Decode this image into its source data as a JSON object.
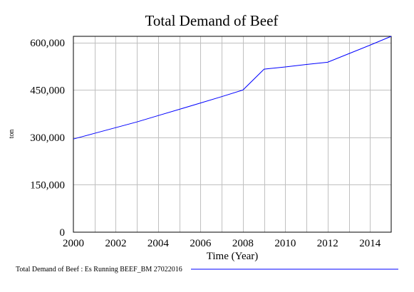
{
  "chart_data": {
    "type": "line",
    "title": "Total Demand of Beef",
    "xlabel": "Time (Year)",
    "ylabel": "ton",
    "xlim": [
      2000,
      2015
    ],
    "ylim": [
      0,
      620000
    ],
    "x_ticks": [
      2000,
      2002,
      2004,
      2006,
      2008,
      2010,
      2012,
      2014
    ],
    "x_tick_labels": [
      "2000",
      "2002",
      "2004",
      "2006",
      "2008",
      "2010",
      "2012",
      "2014"
    ],
    "y_ticks": [
      0,
      150000,
      300000,
      450000,
      600000
    ],
    "y_tick_labels": [
      "0",
      "150,000",
      "300,000",
      "450,000",
      "600,000"
    ],
    "grid": true,
    "legend_position": "bottom",
    "series": [
      {
        "name": "Total Demand of Beef : Es Running BEEF_BM 27022016",
        "color": "#0000ff",
        "x": [
          2000,
          2001,
          2002,
          2003,
          2004,
          2005,
          2006,
          2007,
          2008,
          2009,
          2010,
          2011,
          2012,
          2013,
          2014,
          2015
        ],
        "y": [
          295000,
          313000,
          331000,
          349000,
          369000,
          389000,
          409000,
          429000,
          450000,
          516000,
          523000,
          531000,
          538000,
          565000,
          592000,
          620000
        ]
      }
    ]
  }
}
